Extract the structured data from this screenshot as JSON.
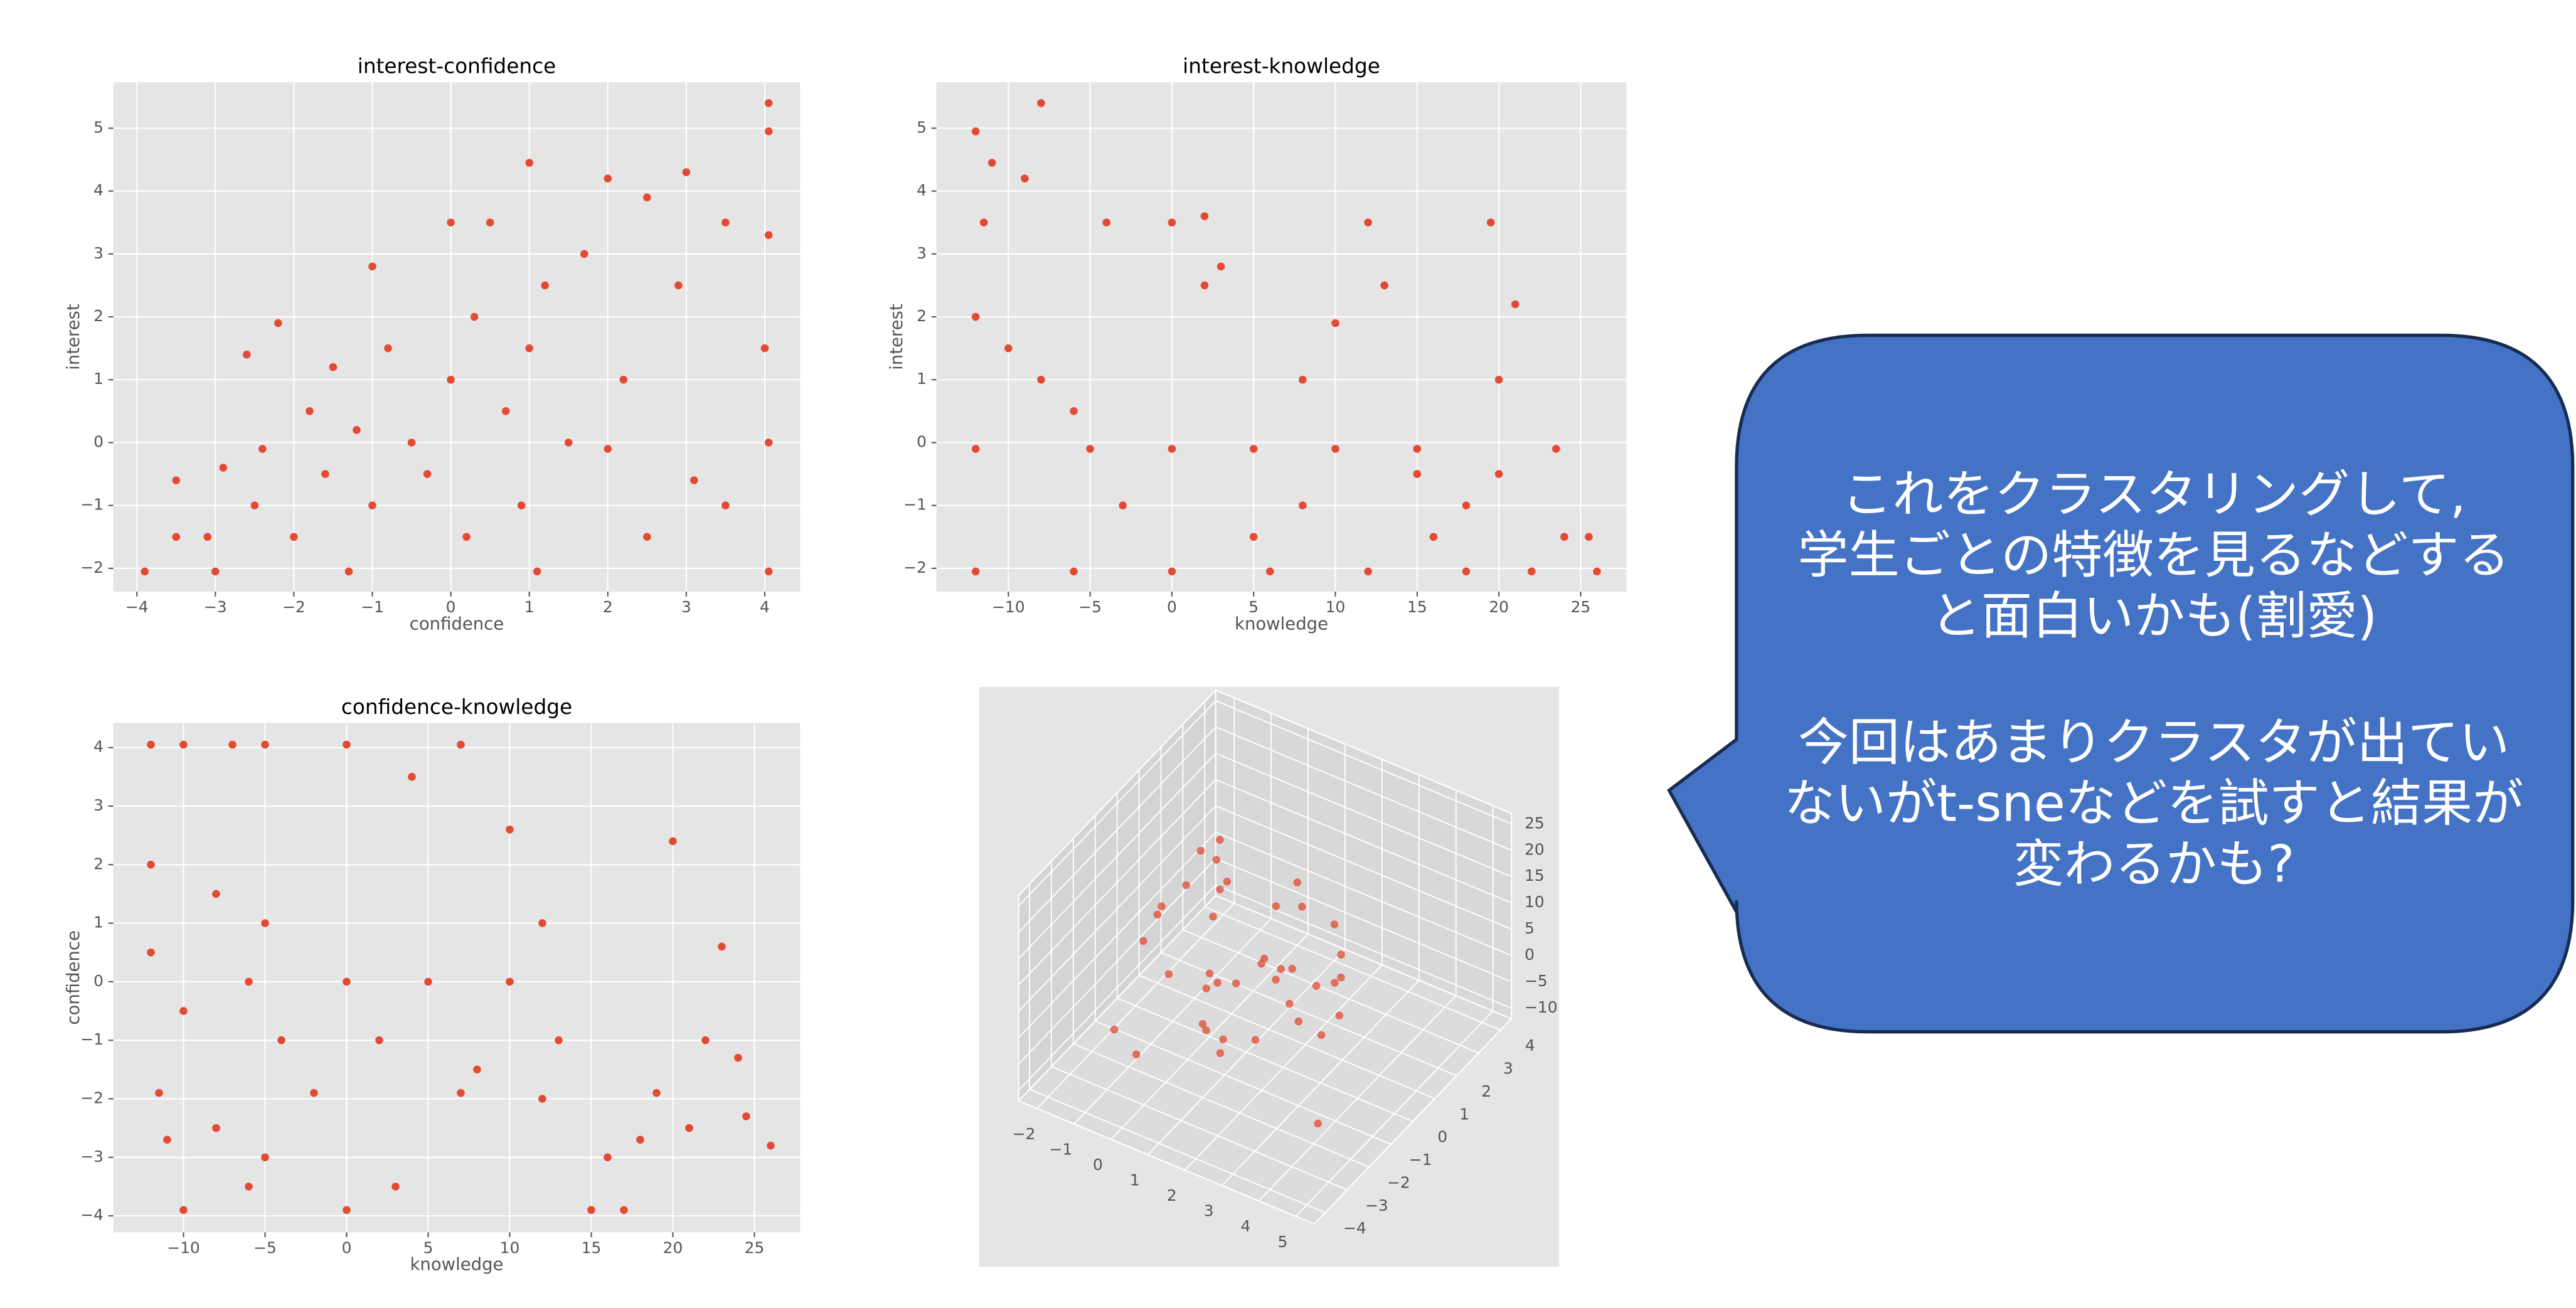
{
  "chart_data": [
    {
      "type": "scatter",
      "title": "interest-confidence",
      "xlabel": "confidence",
      "ylabel": "interest",
      "color": "#e24a33",
      "grid": true,
      "xlim": [
        -4.3,
        4.45
      ],
      "ylim": [
        -2.37,
        5.73
      ],
      "xticks": [
        {
          "value": -4,
          "label": "−4"
        },
        {
          "value": -3,
          "label": "−3"
        },
        {
          "value": -2,
          "label": "−2"
        },
        {
          "value": -1,
          "label": "−1"
        },
        0,
        1,
        2,
        3,
        4
      ],
      "yticks": [
        {
          "value": -2,
          "label": "−2"
        },
        {
          "value": -1,
          "label": "−1"
        },
        0,
        1,
        2,
        3,
        4,
        5
      ],
      "x": [
        -3.9,
        -3.5,
        -3.5,
        -3.1,
        -3,
        -2.9,
        -2.6,
        -2.5,
        -2.4,
        -2.2,
        -2,
        -1.8,
        -1.6,
        -1.5,
        -1.3,
        -1.2,
        -1,
        -1,
        -0.8,
        -0.5,
        -0.3,
        0,
        0,
        0.2,
        0.3,
        0.5,
        0.7,
        0.9,
        1,
        1,
        1.1,
        1.2,
        1.5,
        1.7,
        2,
        2,
        2.2,
        2.5,
        2.5,
        2.9,
        3,
        3.1,
        3.5,
        3.5,
        4.05,
        4.05,
        4.05,
        4,
        4.05,
        4.05
      ],
      "y": [
        -2.05,
        -0.6,
        -1.5,
        -1.5,
        -2.05,
        -0.4,
        1.4,
        -1,
        -0.1,
        1.9,
        -1.5,
        0.5,
        -0.5,
        1.2,
        -2.05,
        0.2,
        2.8,
        -1,
        1.5,
        0,
        -0.5,
        1,
        3.5,
        -1.5,
        2,
        3.5,
        0.5,
        -1,
        4.45,
        1.5,
        -2.05,
        2.5,
        0,
        3,
        4.2,
        -0.1,
        1,
        3.9,
        -1.5,
        2.5,
        4.3,
        -0.6,
        3.5,
        -1,
        5.4,
        4.95,
        3.3,
        1.5,
        0,
        -2.05
      ]
    },
    {
      "type": "scatter",
      "title": "interest-knowledge",
      "xlabel": "knowledge",
      "ylabel": "interest",
      "color": "#e24a33",
      "grid": true,
      "xlim": [
        -14.4,
        27.8
      ],
      "ylim": [
        -2.37,
        5.73
      ],
      "xticks": [
        {
          "value": -10,
          "label": "−10"
        },
        {
          "value": -5,
          "label": "−5"
        },
        0,
        5,
        10,
        15,
        20,
        25
      ],
      "yticks": [
        {
          "value": -2,
          "label": "−2"
        },
        {
          "value": -1,
          "label": "−1"
        },
        0,
        1,
        2,
        3,
        4,
        5
      ],
      "x": [
        -12,
        -11,
        -8,
        -11.5,
        -9,
        -12,
        -10,
        -8,
        -6,
        -12,
        -5,
        0,
        5,
        10,
        15,
        -12,
        -6,
        0,
        6,
        12,
        18,
        22,
        26,
        -4,
        0,
        2,
        3,
        2,
        8,
        10,
        12,
        13,
        15,
        18,
        19.5,
        20,
        21,
        23.5,
        24,
        25.5,
        -3,
        5,
        8,
        16,
        20
      ],
      "y": [
        4.95,
        4.45,
        5.4,
        3.5,
        4.2,
        2,
        1.5,
        1,
        0.5,
        -0.1,
        -0.1,
        -0.1,
        -0.1,
        -0.1,
        -0.1,
        -2.05,
        -2.05,
        -2.05,
        -2.05,
        -2.05,
        -2.05,
        -2.05,
        -2.05,
        3.5,
        3.5,
        2.5,
        2.8,
        3.6,
        1,
        1.9,
        3.5,
        2.5,
        -0.5,
        -1,
        3.5,
        1,
        2.2,
        -0.1,
        -1.5,
        -1.5,
        -1,
        -1.5,
        -1,
        -1.5,
        -0.5
      ]
    },
    {
      "type": "scatter",
      "title": "confidence-knowledge",
      "xlabel": "knowledge",
      "ylabel": "confidence",
      "color": "#e24a33",
      "grid": true,
      "xlim": [
        -14.3,
        27.8
      ],
      "ylim": [
        -4.28,
        4.42
      ],
      "xticks": [
        {
          "value": -10,
          "label": "−10"
        },
        {
          "value": -5,
          "label": "−5"
        },
        0,
        5,
        10,
        15,
        20,
        25
      ],
      "yticks": [
        {
          "value": -4,
          "label": "−4"
        },
        {
          "value": -3,
          "label": "−3"
        },
        {
          "value": -2,
          "label": "−2"
        },
        {
          "value": -1,
          "label": "−1"
        },
        0,
        1,
        2,
        3,
        4
      ],
      "x": [
        -12,
        -10,
        -7,
        -5,
        0,
        4,
        7,
        -12,
        -8,
        -5,
        -12,
        -6,
        0,
        5,
        10,
        -10,
        -4,
        2,
        8,
        -11,
        -8,
        -6,
        -5,
        -2,
        0,
        3,
        7,
        10,
        12,
        13,
        15,
        16,
        17,
        18,
        19,
        20,
        21,
        22,
        23,
        24,
        24.5,
        26,
        -10,
        -11.5,
        12
      ],
      "y": [
        4.05,
        4.05,
        4.05,
        4.05,
        4.05,
        3.5,
        4.05,
        2,
        1.5,
        1,
        0.5,
        0,
        0,
        0,
        0,
        -0.5,
        -1,
        -1,
        -1.5,
        -2.7,
        -2.5,
        -3.5,
        -3,
        -1.9,
        -3.9,
        -3.5,
        -1.9,
        2.6,
        1,
        -1,
        -3.9,
        -3,
        -3.9,
        -2.7,
        -1.9,
        2.4,
        -2.5,
        -1,
        0.6,
        -1.3,
        -2.3,
        -2.8,
        -3.9,
        -1.9,
        -2
      ]
    },
    {
      "type": "scatter3d",
      "color": "#e24a33",
      "xlim": [
        -2.5,
        5.5
      ],
      "ylim": [
        -4.5,
        4.5
      ],
      "zlim": [
        -12,
        27
      ],
      "xticks": [
        {
          "value": -2,
          "label": "−2"
        },
        {
          "value": -1,
          "label": "−1"
        },
        0,
        1,
        2,
        3,
        4,
        5
      ],
      "yticks": [
        {
          "value": -4,
          "label": "−4"
        },
        {
          "value": -3,
          "label": "−3"
        },
        {
          "value": -2,
          "label": "−2"
        },
        {
          "value": -1,
          "label": "−1"
        },
        0,
        1,
        2,
        3,
        4
      ],
      "zticks": [
        {
          "value": -10,
          "label": "−10"
        },
        {
          "value": -5,
          "label": "−5"
        },
        0,
        5,
        10,
        15,
        20,
        25
      ],
      "x": [
        -1,
        -0.5,
        0,
        0.5,
        1,
        1.5,
        2,
        -1.5,
        -1,
        0,
        0.8,
        1.2,
        2.5,
        3,
        -0.5,
        0.3,
        1.7,
        2.2,
        -2,
        -1.2,
        0.6,
        1.4,
        2.8,
        3.5,
        0,
        1,
        2,
        -0.8,
        0.4,
        1.9,
        3.2,
        4,
        -1.7,
        0.2,
        1.1,
        2.4,
        -0.3,
        0.9,
        1.6,
        2.9
      ],
      "y": [
        2,
        1,
        0,
        -1,
        -2,
        0.5,
        1.5,
        3,
        -0.5,
        2.5,
        -1.5,
        1,
        0,
        -1,
        -2.5,
        3.5,
        -0.5,
        2,
        1,
        -1,
        0.2,
        -2,
        1.2,
        -0.8,
        0.8,
        -1.2,
        0.4,
        -3,
        -0.2,
        2.8,
        0.6,
        -1.8,
        1.8,
        -2.2,
        1.4,
        -0.4,
        0.1,
        -0.9,
        3,
        -2.8
      ],
      "z": [
        10,
        5,
        0,
        -5,
        2,
        15,
        -3,
        8,
        12,
        -8,
        6,
        -2,
        20,
        4,
        -6,
        3,
        9,
        -4,
        1,
        7,
        -1,
        11,
        -5,
        2,
        14,
        -7,
        5,
        0,
        18,
        -3,
        6,
        -9,
        4,
        10,
        -2,
        3,
        22,
        -6,
        1,
        8
      ]
    }
  ],
  "callout": {
    "paragraphs": [
      [
        "これをクラスタリングして,",
        "学生ごとの特徴を見るなどする",
        "と面白いかも(割愛)"
      ],
      [
        "今回はあまりクラスタが出てい",
        "ないがt-sneなどを試すと結果が",
        "変わるかも?"
      ]
    ]
  }
}
